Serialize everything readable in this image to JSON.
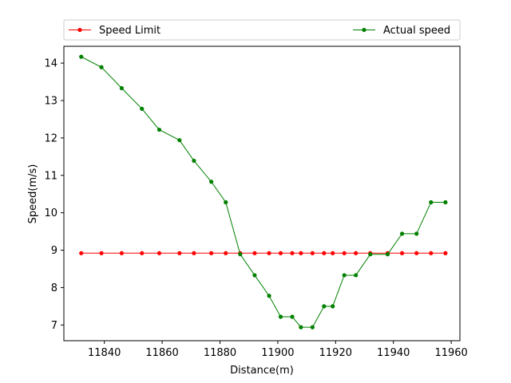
{
  "chart_data": {
    "type": "line",
    "title": "",
    "xlabel": "Distance(m)",
    "ylabel": "Speed(m/s)",
    "xlim": [
      11826,
      11963
    ],
    "ylim": [
      6.58,
      14.45
    ],
    "x_ticks": [
      11840,
      11860,
      11880,
      11900,
      11920,
      11940,
      11960
    ],
    "y_ticks": [
      7,
      8,
      9,
      10,
      11,
      12,
      13,
      14
    ],
    "grid": false,
    "legend_placement": "top, above plot",
    "series": [
      {
        "name": "Speed Limit",
        "color": "#ff0000",
        "x": [
          11832,
          11839,
          11846,
          11853,
          11859,
          11866,
          11871,
          11877,
          11882,
          11887,
          11892,
          11897,
          11901,
          11905,
          11908,
          11912,
          11916,
          11919,
          11923,
          11927,
          11932,
          11938,
          11943,
          11948,
          11953,
          11958
        ],
        "y": [
          8.92,
          8.92,
          8.92,
          8.92,
          8.92,
          8.92,
          8.92,
          8.92,
          8.92,
          8.92,
          8.92,
          8.92,
          8.92,
          8.92,
          8.92,
          8.92,
          8.92,
          8.92,
          8.92,
          8.92,
          8.92,
          8.92,
          8.92,
          8.92,
          8.92,
          8.92
        ]
      },
      {
        "name": "Actual speed",
        "color": "#008000",
        "x": [
          11832,
          11839,
          11846,
          11853,
          11859,
          11866,
          11871,
          11877,
          11882,
          11887,
          11892,
          11897,
          11901,
          11905,
          11908,
          11912,
          11916,
          11919,
          11923,
          11927,
          11932,
          11938,
          11943,
          11948,
          11953,
          11958
        ],
        "y": [
          14.17,
          13.89,
          13.33,
          12.78,
          12.22,
          11.94,
          11.39,
          10.83,
          10.28,
          8.89,
          8.33,
          7.78,
          7.22,
          7.22,
          6.94,
          6.94,
          7.5,
          7.5,
          8.33,
          8.33,
          8.89,
          8.89,
          9.44,
          9.44,
          10.28,
          10.28
        ]
      }
    ]
  }
}
